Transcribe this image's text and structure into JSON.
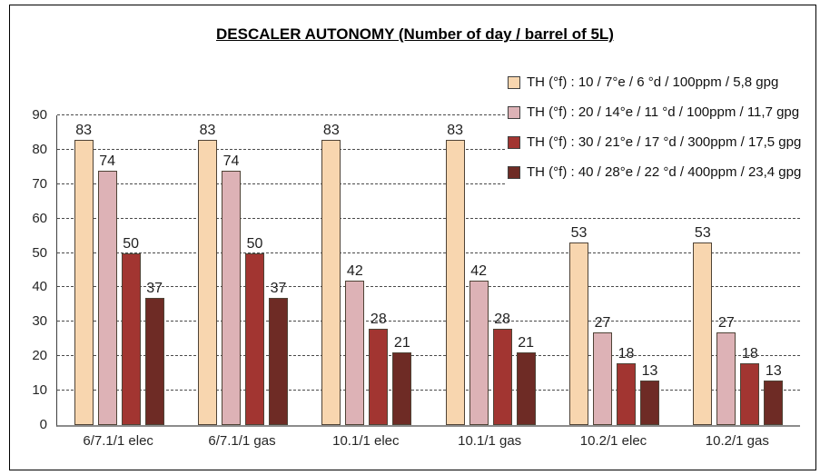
{
  "chart_data": {
    "type": "bar",
    "title": "DESCALER AUTONOMY (Number of day / barrel of 5L)",
    "categories": [
      "6/7.1/1 elec",
      "6/7.1/1 gas",
      "10.1/1 elec",
      "10.1/1 gas",
      "10.2/1 elec",
      "10.2/1 gas"
    ],
    "series": [
      {
        "name": "TH (°f) : 10 / 7°e / 6 °d / 100ppm / 5,8 gpg",
        "color": "#F8D6AF",
        "values": [
          83,
          83,
          83,
          83,
          53,
          53
        ]
      },
      {
        "name": "TH (°f) : 20 / 14°e / 11 °d / 100ppm / 11,7 gpg",
        "color": "#DDB2B6",
        "values": [
          74,
          74,
          42,
          42,
          27,
          27
        ]
      },
      {
        "name": "TH (°f) : 30 / 21°e / 17 °d / 300ppm / 17,5 gpg",
        "color": "#A23531",
        "values": [
          50,
          50,
          28,
          28,
          18,
          18
        ]
      },
      {
        "name": "TH (°f) : 40 / 28°e / 22 °d / 400ppm / 23,4 gpg",
        "color": "#6E2B25",
        "values": [
          37,
          37,
          21,
          21,
          13,
          13
        ]
      }
    ],
    "ylim": [
      0,
      90
    ],
    "ytick_step": 10,
    "grid": "horizontal-dashed",
    "legend_position": "top-right",
    "data_labels": "outside-end",
    "style": {
      "bar_border_color": "#4f4336",
      "axis_bottom_color": "#8c8c8c",
      "axis_left_color": "#404040",
      "gridline_color": "#4a4a4a"
    }
  }
}
